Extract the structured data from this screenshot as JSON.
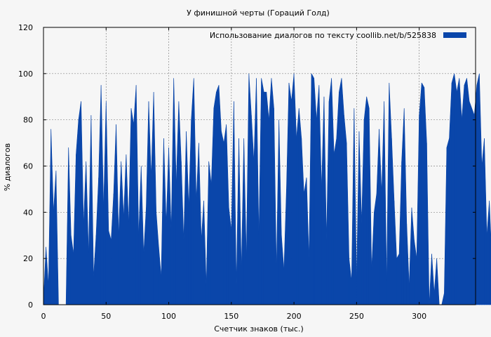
{
  "chart_data": {
    "type": "area",
    "title": "У финишной черты (Гораций Голд)",
    "xlabel": "Счетчик знаков (тыс.)",
    "ylabel": "% диалогов",
    "xlim": [
      0,
      345
    ],
    "ylim": [
      0,
      120
    ],
    "xticks": [
      0,
      50,
      100,
      150,
      200,
      250,
      300
    ],
    "yticks": [
      0,
      20,
      40,
      60,
      80,
      100,
      120
    ],
    "xtick_labels": [
      "0",
      "50",
      "100",
      "150",
      "200",
      "250",
      "300"
    ],
    "ytick_labels": [
      "0",
      "20",
      "40",
      "60",
      "80",
      "100",
      "120"
    ],
    "grid": true,
    "legend": {
      "position": "top-right",
      "label": "Использование диалогов по тексту  coollib.net/b/525838"
    },
    "series": [
      {
        "name": "Использование диалогов по тексту  coollib.net/b/525838",
        "color": "#0a46aa",
        "x_step": 2,
        "values": [
          2,
          25,
          8,
          76,
          40,
          58,
          0,
          0,
          0,
          0,
          68,
          30,
          22,
          65,
          80,
          88,
          35,
          62,
          22,
          82,
          12,
          30,
          55,
          95,
          42,
          88,
          32,
          28,
          48,
          78,
          30,
          62,
          38,
          65,
          35,
          85,
          78,
          95,
          30,
          60,
          22,
          42,
          88,
          55,
          92,
          40,
          25,
          12,
          72,
          35,
          68,
          32,
          98,
          52,
          88,
          62,
          28,
          75,
          42,
          80,
          98,
          45,
          70,
          28,
          45,
          8,
          62,
          52,
          85,
          92,
          95,
          75,
          70,
          78,
          42,
          32,
          88,
          8,
          72,
          15,
          72,
          20,
          100,
          82,
          62,
          98,
          30,
          98,
          92,
          92,
          80,
          98,
          85,
          15,
          80,
          30,
          15,
          50,
          96,
          88,
          100,
          72,
          85,
          72,
          48,
          55,
          20,
          100,
          98,
          80,
          95,
          50,
          90,
          28,
          88,
          98,
          65,
          72,
          92,
          98,
          82,
          70,
          20,
          10,
          85,
          10,
          75,
          35,
          80,
          90,
          85,
          15,
          40,
          48,
          76,
          48,
          88,
          10,
          96,
          72,
          45,
          20,
          22,
          62,
          85,
          35,
          8,
          42,
          28,
          20,
          82,
          96,
          94,
          70,
          0,
          22,
          5,
          20,
          0,
          0,
          5,
          68,
          72,
          96,
          100,
          92,
          98,
          80,
          95,
          98,
          88,
          85,
          82,
          95,
          100,
          60,
          72,
          30,
          45,
          20
        ]
      }
    ]
  }
}
